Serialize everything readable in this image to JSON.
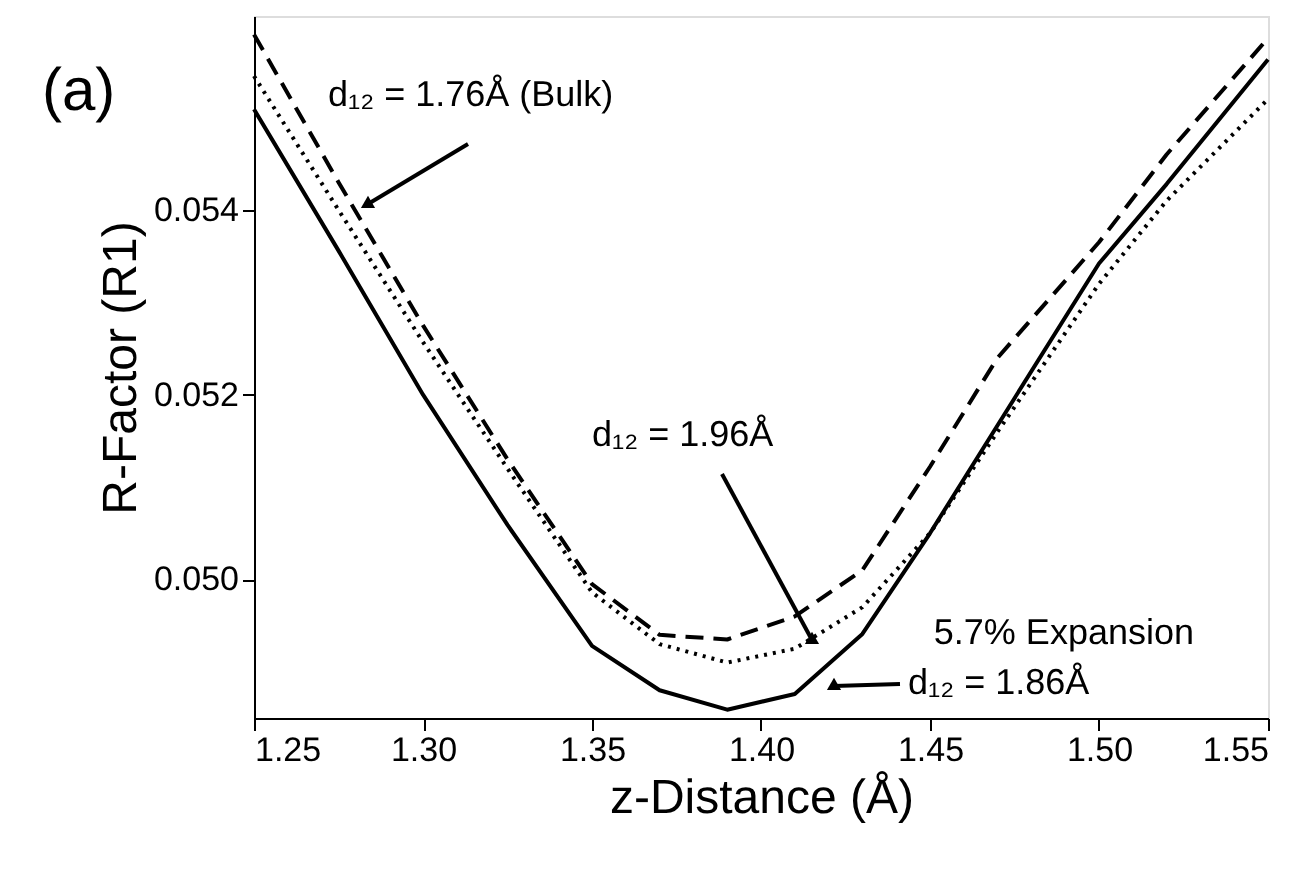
{
  "chart_data": {
    "type": "line",
    "xlabel": "z-Distance (Å)",
    "ylabel": "R-Factor (R1)",
    "x": [
      1.25,
      1.275,
      1.3,
      1.325,
      1.35,
      1.37,
      1.39,
      1.41,
      1.43,
      1.45,
      1.47,
      1.5,
      1.52,
      1.55
    ],
    "series": [
      {
        "name": "d₁₂ = 1.76Å (Bulk)",
        "color": "#000000",
        "line_style": "dashed",
        "values": [
          0.0559,
          0.0543,
          0.05275,
          0.0513,
          0.04995,
          0.0494,
          0.04935,
          0.0496,
          0.0501,
          0.05122,
          0.0524,
          0.05365,
          0.0546,
          0.05586
        ]
      },
      {
        "name": "d₁₂ = 1.96Å",
        "color": "#000000",
        "line_style": "dotted",
        "values": [
          0.05545,
          0.054,
          0.05257,
          0.0512,
          0.04986,
          0.0493,
          0.0491,
          0.04925,
          0.0497,
          0.0505,
          0.0516,
          0.0532,
          0.0541,
          0.0552
        ]
      },
      {
        "name": "d₁₂ = 1.86Å",
        "color": "#000000",
        "line_style": "solid",
        "values": [
          0.05509,
          0.05356,
          0.052,
          0.05059,
          0.04928,
          0.0488,
          0.04859,
          0.04876,
          0.04941,
          0.0505,
          0.05167,
          0.05342,
          0.05428,
          0.05563
        ]
      }
    ],
    "xlim": [
      1.25,
      1.55
    ],
    "ylim": [
      0.0485,
      0.0561
    ],
    "xticks": [
      1.25,
      {
        "value": 1.3,
        "label": "1.30"
      },
      1.35,
      {
        "value": 1.4,
        "label": "1.40"
      },
      1.45,
      {
        "value": 1.5,
        "label": "1.50"
      },
      1.55
    ],
    "yticks": [
      {
        "value": 0.05,
        "label": "0.050"
      },
      {
        "value": 0.052,
        "label": "0.052"
      },
      {
        "value": 0.054,
        "label": "0.054"
      }
    ],
    "annotations": [
      "(a)",
      "5.7% Expansion"
    ],
    "marker": "none",
    "grid": false
  }
}
